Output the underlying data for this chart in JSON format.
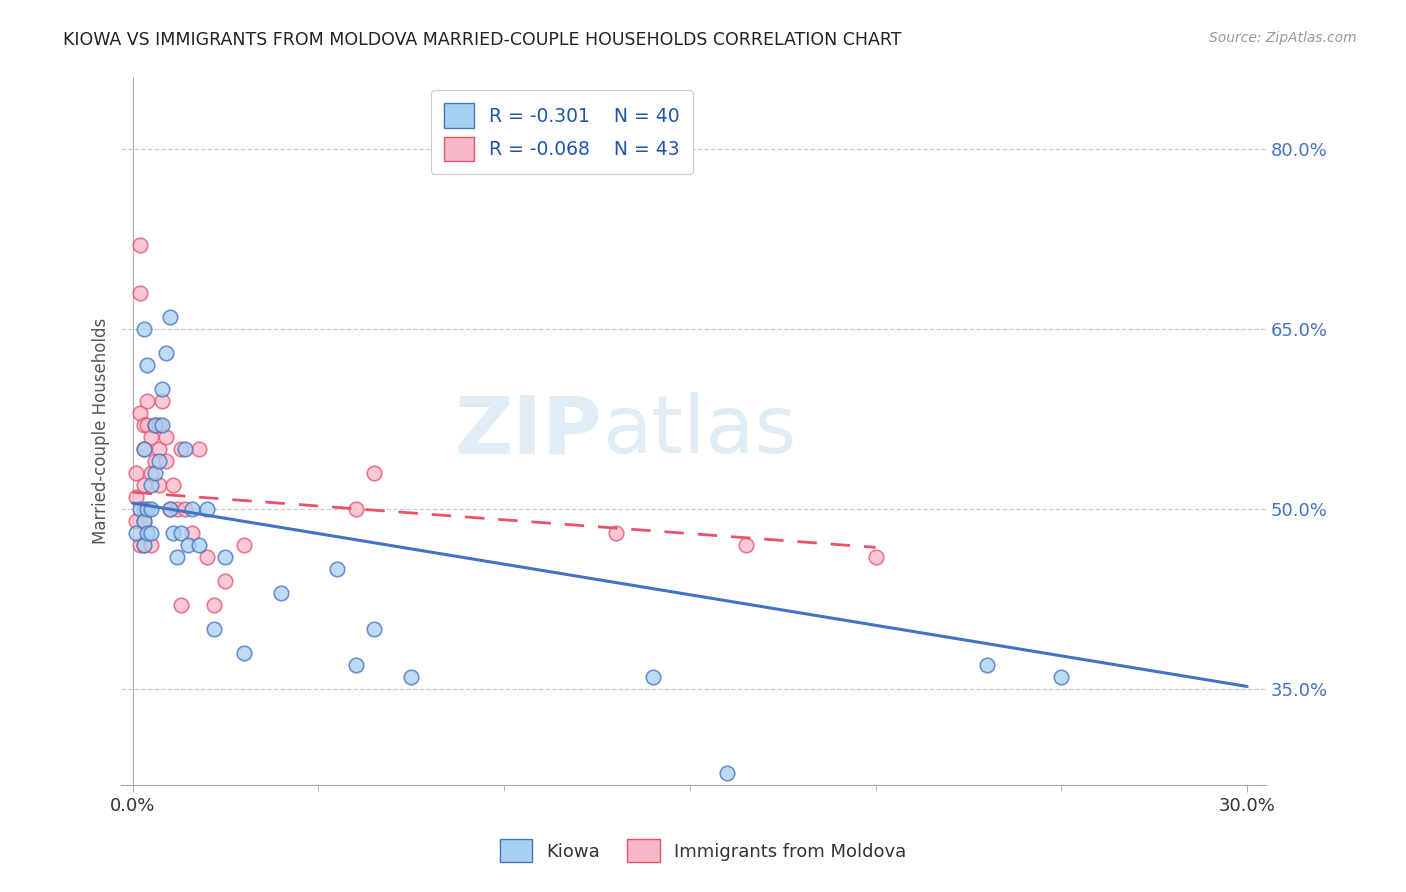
{
  "title": "KIOWA VS IMMIGRANTS FROM MOLDOVA MARRIED-COUPLE HOUSEHOLDS CORRELATION CHART",
  "source": "Source: ZipAtlas.com",
  "ylabel": "Married-couple Households",
  "xlim": [
    -0.003,
    0.305
  ],
  "ylim": [
    0.27,
    0.86
  ],
  "yticks": [
    0.35,
    0.5,
    0.65,
    0.8
  ],
  "ytick_labels": [
    "35.0%",
    "50.0%",
    "65.0%",
    "80.0%"
  ],
  "xtick_left_label": "0.0%",
  "xtick_right_label": "30.0%",
  "watermark_zip": "ZIP",
  "watermark_atlas": "atlas",
  "blue_fill": "#a8d0f0",
  "blue_edge": "#4472c4",
  "blue_line": "#4472c4",
  "pink_fill": "#f9b8c8",
  "pink_edge": "#e8536a",
  "pink_line": "#e8536a",
  "scatter_size": 110,
  "grid_color": "#cccccc",
  "legend_r1": "R = -0.301",
  "legend_n1": "N = 40",
  "legend_r2": "R = -0.068",
  "legend_n2": "N = 43",
  "label1": "Kiowa",
  "label2": "Immigrants from Moldova",
  "kiowa_x": [
    0.001,
    0.002,
    0.003,
    0.003,
    0.003,
    0.003,
    0.004,
    0.004,
    0.004,
    0.005,
    0.005,
    0.005,
    0.006,
    0.006,
    0.007,
    0.008,
    0.008,
    0.009,
    0.01,
    0.01,
    0.011,
    0.012,
    0.013,
    0.014,
    0.015,
    0.016,
    0.018,
    0.02,
    0.022,
    0.025,
    0.03,
    0.04,
    0.055,
    0.06,
    0.065,
    0.075,
    0.14,
    0.16,
    0.23,
    0.25
  ],
  "kiowa_y": [
    0.48,
    0.5,
    0.49,
    0.47,
    0.55,
    0.65,
    0.5,
    0.48,
    0.62,
    0.52,
    0.5,
    0.48,
    0.57,
    0.53,
    0.54,
    0.6,
    0.57,
    0.63,
    0.66,
    0.5,
    0.48,
    0.46,
    0.48,
    0.55,
    0.47,
    0.5,
    0.47,
    0.5,
    0.4,
    0.46,
    0.38,
    0.43,
    0.45,
    0.37,
    0.4,
    0.36,
    0.36,
    0.28,
    0.37,
    0.36
  ],
  "moldova_x": [
    0.001,
    0.001,
    0.001,
    0.002,
    0.002,
    0.002,
    0.002,
    0.003,
    0.003,
    0.003,
    0.003,
    0.003,
    0.003,
    0.004,
    0.004,
    0.005,
    0.005,
    0.005,
    0.006,
    0.006,
    0.007,
    0.007,
    0.007,
    0.008,
    0.009,
    0.009,
    0.01,
    0.011,
    0.012,
    0.013,
    0.013,
    0.014,
    0.016,
    0.018,
    0.02,
    0.022,
    0.025,
    0.03,
    0.06,
    0.065,
    0.13,
    0.165,
    0.2
  ],
  "moldova_y": [
    0.53,
    0.51,
    0.49,
    0.72,
    0.68,
    0.58,
    0.47,
    0.57,
    0.55,
    0.52,
    0.5,
    0.49,
    0.47,
    0.59,
    0.57,
    0.56,
    0.53,
    0.47,
    0.57,
    0.54,
    0.57,
    0.55,
    0.52,
    0.59,
    0.56,
    0.54,
    0.5,
    0.52,
    0.5,
    0.55,
    0.42,
    0.5,
    0.48,
    0.55,
    0.46,
    0.42,
    0.44,
    0.47,
    0.5,
    0.53,
    0.48,
    0.47,
    0.46
  ],
  "blue_trendline_x": [
    0.0,
    0.3
  ],
  "blue_trendline_y": [
    0.505,
    0.352
  ],
  "pink_trendline_x": [
    0.0,
    0.2
  ],
  "pink_trendline_y": [
    0.514,
    0.468
  ]
}
